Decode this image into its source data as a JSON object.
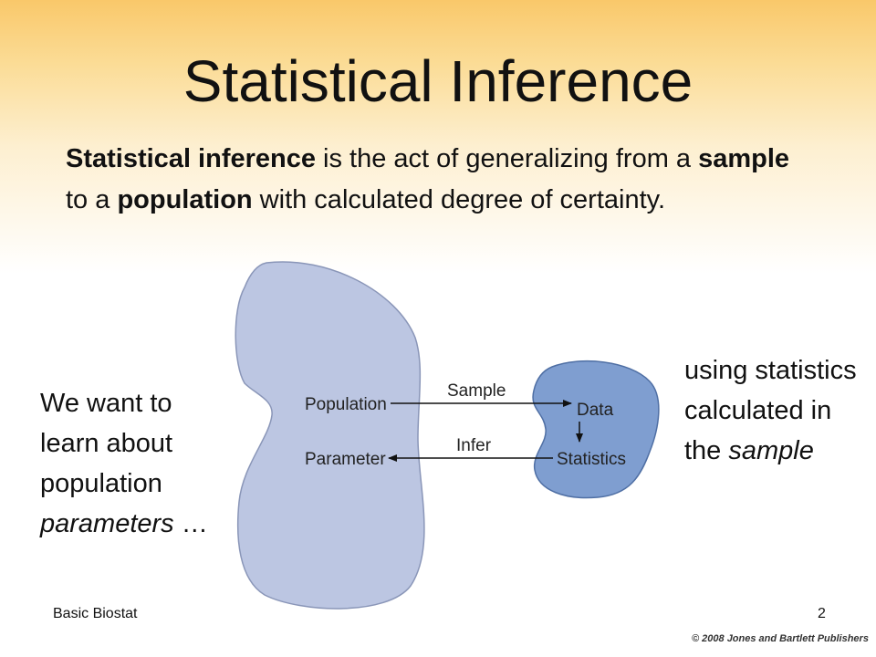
{
  "slide": {
    "title": "Statistical Inference",
    "intro": {
      "term": "Statistical inference",
      "part1": " is the act of generalizing from a ",
      "sample_word": "sample",
      "part2": " to a ",
      "population_word": "population",
      "part3": " with calculated degree of certainty."
    },
    "left_note": {
      "text": "We want to learn about population ",
      "italic": "parameters",
      "tail": " …"
    },
    "right_note": {
      "text": "using statistics calculated in the ",
      "italic": "sample"
    },
    "diagram": {
      "population_label": "Population",
      "parameter_label": "Parameter",
      "sample_arrow_label": "Sample",
      "infer_arrow_label": "Infer",
      "data_label": "Data",
      "statistics_label": "Statistics",
      "colors": {
        "population_fill": "#bcc6e2",
        "population_stroke": "#8a96b8",
        "sample_fill": "#7f9ed0",
        "sample_stroke": "#4f6fa4"
      }
    },
    "footer": {
      "left": "Basic Biostat",
      "page_number": "2",
      "copyright": "© 2008 Jones and Bartlett Publishers"
    }
  }
}
